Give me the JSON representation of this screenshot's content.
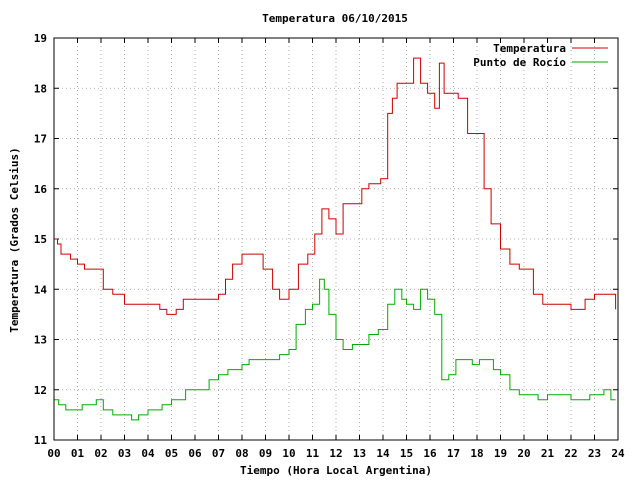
{
  "chart_data": {
    "type": "line",
    "title": "Temperatura 06/10/2015",
    "xlabel": "Tiempo (Hora Local Argentina)",
    "ylabel": "Temperatura (Grados Celsius)",
    "xlim": [
      0,
      24
    ],
    "ylim": [
      11,
      19
    ],
    "xticks": [
      "00",
      "01",
      "02",
      "03",
      "04",
      "05",
      "06",
      "07",
      "08",
      "09",
      "10",
      "11",
      "12",
      "13",
      "14",
      "15",
      "16",
      "17",
      "18",
      "19",
      "20",
      "21",
      "22",
      "23",
      "24"
    ],
    "yticks": [
      "11",
      "12",
      "13",
      "14",
      "15",
      "16",
      "17",
      "18",
      "19"
    ],
    "grid": true,
    "legend_position": "top-right",
    "series": [
      {
        "name": "Temperatura",
        "color": "#cc0000",
        "x": [
          0,
          0.15,
          0.3,
          0.45,
          0.7,
          1.0,
          1.3,
          1.5,
          1.9,
          2.1,
          2.5,
          3.0,
          3.6,
          4.3,
          4.5,
          4.8,
          5.2,
          5.5,
          6.0,
          6.5,
          7.0,
          7.3,
          7.6,
          8.0,
          8.5,
          8.9,
          9.3,
          9.6,
          10.0,
          10.4,
          10.8,
          11.1,
          11.4,
          11.7,
          12.0,
          12.3,
          12.7,
          13.1,
          13.4,
          13.9,
          14.2,
          14.4,
          14.6,
          15.0,
          15.3,
          15.6,
          15.9,
          16.2,
          16.4,
          16.6,
          16.9,
          17.2,
          17.6,
          17.9,
          18.3,
          18.6,
          19.0,
          19.4,
          19.8,
          20.4,
          20.8,
          21.5,
          22.0,
          22.6,
          23.0,
          23.5,
          23.9
        ],
        "y": [
          15.0,
          14.9,
          14.7,
          14.7,
          14.6,
          14.5,
          14.4,
          14.4,
          14.4,
          14.0,
          13.9,
          13.7,
          13.7,
          13.7,
          13.6,
          13.5,
          13.6,
          13.8,
          13.8,
          13.8,
          13.9,
          14.2,
          14.5,
          14.7,
          14.7,
          14.4,
          14.0,
          13.8,
          14.0,
          14.5,
          14.7,
          15.1,
          15.6,
          15.4,
          15.1,
          15.7,
          15.7,
          16.0,
          16.1,
          16.2,
          17.5,
          17.8,
          18.1,
          18.1,
          18.6,
          18.1,
          17.9,
          17.6,
          18.5,
          17.9,
          17.9,
          17.8,
          17.1,
          17.1,
          16.0,
          15.3,
          14.8,
          14.5,
          14.4,
          13.9,
          13.7,
          13.7,
          13.6,
          13.8,
          13.9,
          13.9,
          13.6
        ]
      },
      {
        "name": "Punto de Rocío",
        "color": "#00aa00",
        "x": [
          0,
          0.2,
          0.5,
          0.8,
          1.2,
          1.5,
          1.8,
          2.1,
          2.5,
          3.0,
          3.3,
          3.6,
          4.0,
          4.3,
          4.6,
          5.0,
          5.3,
          5.6,
          6.0,
          6.3,
          6.6,
          7.0,
          7.4,
          7.8,
          8.0,
          8.3,
          8.7,
          9.0,
          9.3,
          9.6,
          10.0,
          10.3,
          10.7,
          11.0,
          11.3,
          11.5,
          11.7,
          12.0,
          12.3,
          12.7,
          13.0,
          13.4,
          13.8,
          14.2,
          14.5,
          14.8,
          15.0,
          15.3,
          15.6,
          15.9,
          16.2,
          16.5,
          16.8,
          17.1,
          17.4,
          17.8,
          18.1,
          18.4,
          18.7,
          19.0,
          19.4,
          19.8,
          20.2,
          20.6,
          21.0,
          21.5,
          22.0,
          22.4,
          22.8,
          23.1,
          23.4,
          23.7,
          23.9
        ],
        "y": [
          11.8,
          11.7,
          11.6,
          11.6,
          11.7,
          11.7,
          11.8,
          11.6,
          11.5,
          11.5,
          11.4,
          11.5,
          11.6,
          11.6,
          11.7,
          11.8,
          11.8,
          12.0,
          12.0,
          12.0,
          12.2,
          12.3,
          12.4,
          12.4,
          12.5,
          12.6,
          12.6,
          12.6,
          12.6,
          12.7,
          12.8,
          13.3,
          13.6,
          13.7,
          14.2,
          14.0,
          13.5,
          13.0,
          12.8,
          12.9,
          12.9,
          13.1,
          13.2,
          13.7,
          14.0,
          13.8,
          13.7,
          13.6,
          14.0,
          13.8,
          13.5,
          12.2,
          12.3,
          12.6,
          12.6,
          12.5,
          12.6,
          12.6,
          12.4,
          12.3,
          12.0,
          11.9,
          11.9,
          11.8,
          11.9,
          11.9,
          11.8,
          11.8,
          11.9,
          11.9,
          12.0,
          11.8,
          11.8
        ]
      }
    ]
  }
}
